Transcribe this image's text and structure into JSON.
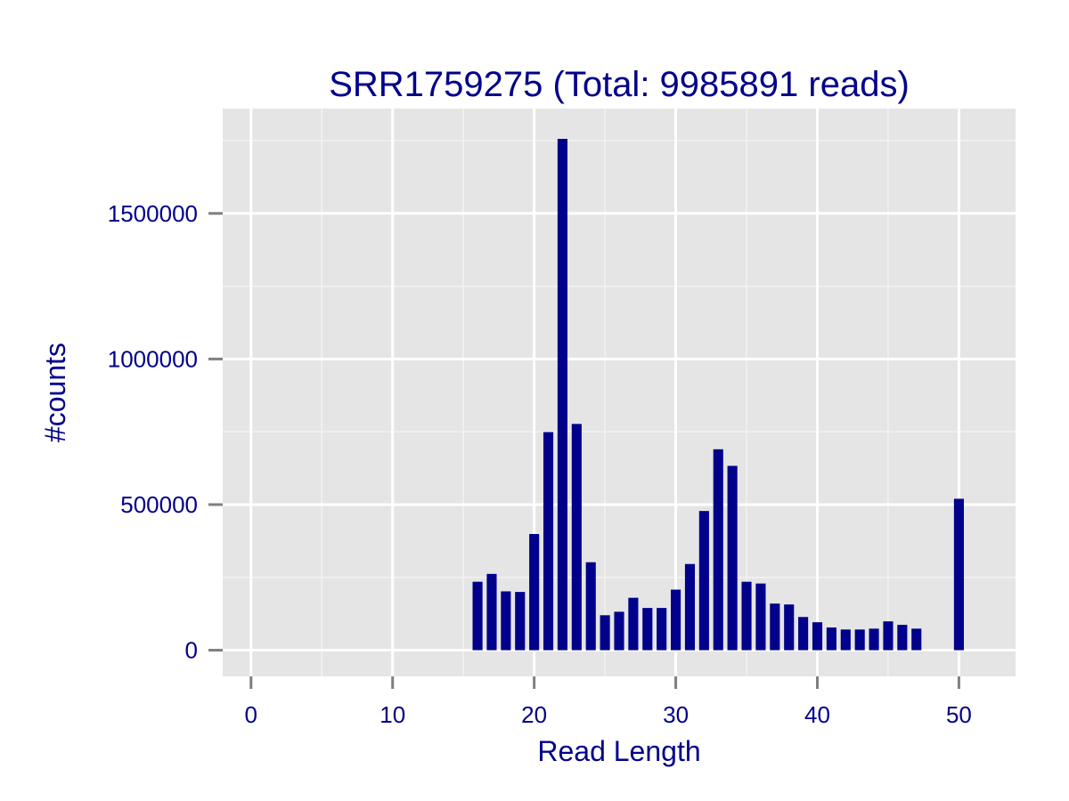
{
  "chart_data": {
    "type": "bar",
    "title": "SRR1759275 (Total: 9985891 reads)",
    "xlabel": "Read Length",
    "ylabel": "#counts",
    "xlim": [
      -2,
      54
    ],
    "ylim": [
      -90000,
      1860000
    ],
    "x_ticks": [
      0,
      10,
      20,
      30,
      40,
      50
    ],
    "x_tick_labels": [
      "0",
      "10",
      "20",
      "30",
      "40",
      "50"
    ],
    "y_ticks": [
      0,
      500000,
      1000000,
      1500000
    ],
    "y_tick_labels": [
      "0",
      "500000",
      "1000000",
      "1500000"
    ],
    "grid": true,
    "colors": {
      "bar": "#00008B",
      "panel": "#E5E5E5",
      "grid_major": "#FFFFFF",
      "grid_minor": "#F2F2F2",
      "tick": "#7F7F7F",
      "text": "#00008B"
    },
    "bars": [
      {
        "x": 16,
        "y": 235000
      },
      {
        "x": 17,
        "y": 262000
      },
      {
        "x": 18,
        "y": 202000
      },
      {
        "x": 19,
        "y": 200000
      },
      {
        "x": 20,
        "y": 399000
      },
      {
        "x": 21,
        "y": 749000
      },
      {
        "x": 22,
        "y": 1756000
      },
      {
        "x": 23,
        "y": 777000
      },
      {
        "x": 24,
        "y": 302000
      },
      {
        "x": 25,
        "y": 120000
      },
      {
        "x": 26,
        "y": 132000
      },
      {
        "x": 27,
        "y": 180000
      },
      {
        "x": 28,
        "y": 145000
      },
      {
        "x": 29,
        "y": 145000
      },
      {
        "x": 30,
        "y": 208000
      },
      {
        "x": 31,
        "y": 296000
      },
      {
        "x": 32,
        "y": 478000
      },
      {
        "x": 33,
        "y": 690000
      },
      {
        "x": 34,
        "y": 633000
      },
      {
        "x": 35,
        "y": 235000
      },
      {
        "x": 36,
        "y": 229000
      },
      {
        "x": 37,
        "y": 160000
      },
      {
        "x": 38,
        "y": 157000
      },
      {
        "x": 39,
        "y": 114000
      },
      {
        "x": 40,
        "y": 96000
      },
      {
        "x": 41,
        "y": 78000
      },
      {
        "x": 42,
        "y": 71000
      },
      {
        "x": 43,
        "y": 71000
      },
      {
        "x": 44,
        "y": 74000
      },
      {
        "x": 45,
        "y": 99000
      },
      {
        "x": 46,
        "y": 87000
      },
      {
        "x": 47,
        "y": 74000
      },
      {
        "x": 50,
        "y": 520000
      }
    ]
  }
}
